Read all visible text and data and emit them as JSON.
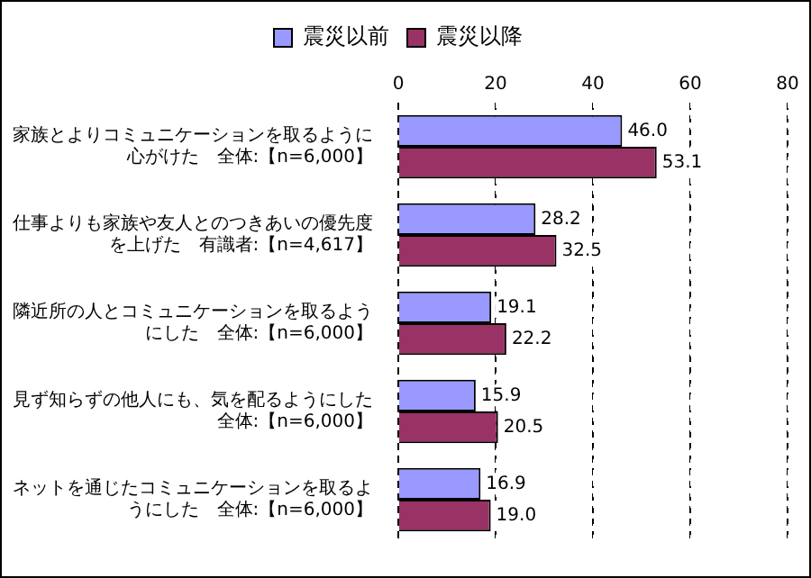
{
  "chart_data": {
    "type": "bar",
    "orientation": "horizontal",
    "categories": [
      "家族とよりコミュニケーションを取るように心がけた　全体:【n=6,000】",
      "仕事よりも家族や友人とのつきあいの優先度を上げた　有識者:【n=4,617】",
      "隣近所の人とコミュニケーションを取るようにした　全体:【n=6,000】",
      "見ず知らずの他人にも、気を配るようにした全体:【n=6,000】",
      "ネットを通じたコミュニケーションを取るようにした　全体:【n=6,000】"
    ],
    "series": [
      {
        "name": "震災以前",
        "color": "#9999ff",
        "values": [
          46.0,
          28.2,
          19.1,
          15.9,
          16.9
        ],
        "value_labels": [
          "46.0",
          "28.2",
          "19.1",
          "15.9",
          "16.9"
        ]
      },
      {
        "name": "震災以降",
        "color": "#993366",
        "values": [
          53.1,
          32.5,
          22.2,
          20.5,
          19.0
        ],
        "value_labels": [
          "53.1",
          "32.5",
          "22.2",
          "20.5",
          "19.0"
        ]
      }
    ],
    "xlim": [
      0,
      80
    ],
    "xticks": [
      0,
      20,
      40,
      60,
      80
    ],
    "grid": "x",
    "legend": "top"
  }
}
